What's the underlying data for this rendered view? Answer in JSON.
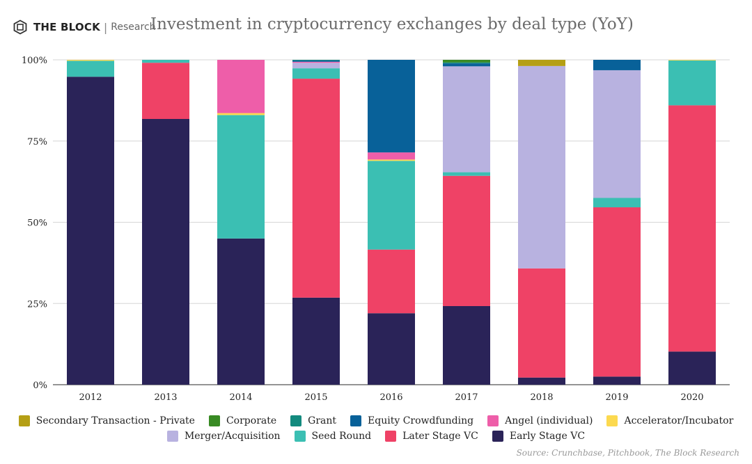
{
  "header": {
    "logo_name": "THE BLOCK",
    "logo_separator": "|",
    "logo_sub": "Research",
    "title": "Investment in cryptocurrency exchanges by deal type (YoY)"
  },
  "source": "Source: Crunchbase, Pitchbook, The Block Research",
  "chart_data": {
    "type": "bar",
    "stacked": true,
    "title": "Investment in cryptocurrency exchanges by deal type (YoY)",
    "xlabel": "",
    "ylabel": "",
    "ylim": [
      0,
      100
    ],
    "y_ticks": [
      "0%",
      "25%",
      "50%",
      "75%",
      "100%"
    ],
    "y_tick_values": [
      0,
      25,
      50,
      75,
      100
    ],
    "categories": [
      "2012",
      "2013",
      "2014",
      "2015",
      "2016",
      "2017",
      "2018",
      "2019",
      "2020"
    ],
    "legend_position": "bottom",
    "series": [
      {
        "name": "Early Stage VC",
        "color": "#2a2358",
        "values": [
          94.8,
          81.8,
          45.0,
          26.8,
          22.0,
          24.2,
          2.2,
          2.5,
          10.2
        ]
      },
      {
        "name": "Later Stage VC",
        "color": "#ef4266",
        "values": [
          0,
          17.3,
          0,
          67.4,
          19.6,
          40.1,
          33.6,
          52.1,
          75.8
        ]
      },
      {
        "name": "Seed Round",
        "color": "#3bbfb3",
        "values": [
          4.9,
          0.9,
          38.0,
          3.2,
          27.3,
          1.1,
          0,
          2.9,
          13.8
        ]
      },
      {
        "name": "Merger/Acquisition",
        "color": "#b8b2e0",
        "values": [
          0,
          0,
          0,
          1.7,
          0,
          32.6,
          62.3,
          39.3,
          0
        ]
      },
      {
        "name": "Accelerator/Incubator",
        "color": "#fcd94f",
        "values": [
          0.3,
          0,
          0.6,
          0,
          0.4,
          0,
          0,
          0,
          0.2
        ]
      },
      {
        "name": "Angel (individual)",
        "color": "#ee5ea9",
        "values": [
          0,
          0,
          16.4,
          0.3,
          2.2,
          0,
          0,
          0,
          0
        ]
      },
      {
        "name": "Equity Crowdfunding",
        "color": "#086199",
        "values": [
          0,
          0,
          0,
          0.4,
          28.5,
          0.9,
          0,
          3.2,
          0
        ]
      },
      {
        "name": "Grant",
        "color": "#138a7e",
        "values": [
          0,
          0,
          0,
          0.2,
          0,
          0.3,
          0,
          0,
          0
        ]
      },
      {
        "name": "Corporate",
        "color": "#388a23",
        "values": [
          0,
          0,
          0,
          0,
          0,
          0.8,
          0,
          0,
          0
        ]
      },
      {
        "name": "Secondary Transaction - Private",
        "color": "#b59f15",
        "values": [
          0,
          0,
          0,
          0,
          0,
          0,
          1.9,
          0,
          0
        ]
      }
    ]
  },
  "legend": {
    "row1": [
      "Secondary Transaction - Private",
      "Corporate",
      "Grant",
      "Equity Crowdfunding",
      "Angel (individual)",
      "Accelerator/Incubator"
    ],
    "row2": [
      "Merger/Acquisition",
      "Seed Round",
      "Later Stage VC",
      "Early Stage VC"
    ]
  }
}
